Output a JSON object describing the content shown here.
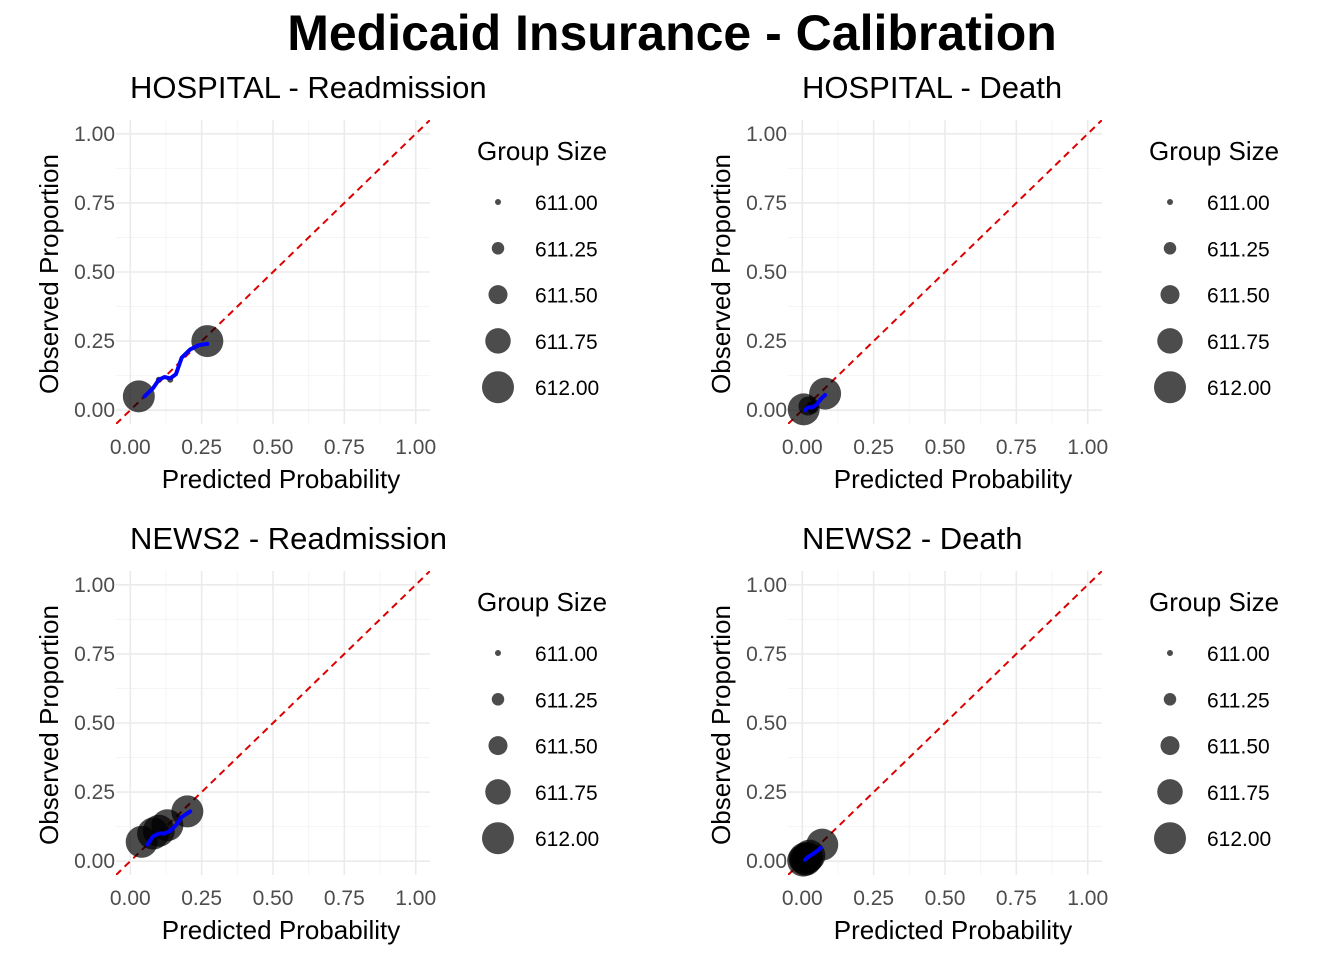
{
  "title": "Medicaid Insurance - Calibration",
  "colors": {
    "point": "#000000",
    "point_opacity": 0.7,
    "smooth": "#0000ff",
    "reference": "#dd0000",
    "grid_major": "#ebebeb",
    "grid_minor": "#f5f5f5"
  },
  "chart_data": [
    {
      "type": "scatter",
      "title": "HOSPITAL - Readmission",
      "xlabel": "Predicted Probability",
      "ylabel": "Observed Proportion",
      "xlim": [
        0,
        1
      ],
      "ylim": [
        0,
        1
      ],
      "xticks": [
        "0.00",
        "0.25",
        "0.50",
        "0.75",
        "1.00"
      ],
      "yticks": [
        "0.00",
        "0.25",
        "0.50",
        "0.75",
        "1.00"
      ],
      "reference_line": "y = x",
      "grid": true,
      "legend": {
        "title": "Group Size",
        "position": "right",
        "labels": [
          "611.00",
          "611.25",
          "611.50",
          "611.75",
          "612.00"
        ],
        "sizes": [
          611.0,
          611.25,
          611.5,
          611.75,
          612.0
        ]
      },
      "points": [
        {
          "x": 0.03,
          "y": 0.05,
          "size": 612
        },
        {
          "x": 0.27,
          "y": 0.25,
          "size": 612
        },
        {
          "x": 0.1,
          "y": 0.11,
          "size": 611
        },
        {
          "x": 0.14,
          "y": 0.11,
          "size": 611
        }
      ],
      "smooth": [
        [
          0.05,
          0.05
        ],
        [
          0.08,
          0.08
        ],
        [
          0.1,
          0.11
        ],
        [
          0.12,
          0.12
        ],
        [
          0.14,
          0.115
        ],
        [
          0.16,
          0.13
        ],
        [
          0.18,
          0.19
        ],
        [
          0.21,
          0.22
        ],
        [
          0.24,
          0.235
        ],
        [
          0.27,
          0.24
        ]
      ]
    },
    {
      "type": "scatter",
      "title": "HOSPITAL - Death",
      "xlabel": "Predicted Probability",
      "ylabel": "Observed Proportion",
      "xlim": [
        0,
        1
      ],
      "ylim": [
        0,
        1
      ],
      "xticks": [
        "0.00",
        "0.25",
        "0.50",
        "0.75",
        "1.00"
      ],
      "yticks": [
        "0.00",
        "0.25",
        "0.50",
        "0.75",
        "1.00"
      ],
      "reference_line": "y = x",
      "grid": true,
      "legend": {
        "title": "Group Size",
        "position": "right",
        "labels": [
          "611.00",
          "611.25",
          "611.50",
          "611.75",
          "612.00"
        ],
        "sizes": [
          611.0,
          611.25,
          611.5,
          611.75,
          612.0
        ]
      },
      "points": [
        {
          "x": 0.005,
          "y": 0.003,
          "size": 612
        },
        {
          "x": 0.08,
          "y": 0.06,
          "size": 612
        },
        {
          "x": 0.02,
          "y": 0.015,
          "size": 611.5
        },
        {
          "x": 0.035,
          "y": 0.01,
          "size": 611.25
        }
      ],
      "smooth": [
        [
          0.01,
          0.0
        ],
        [
          0.02,
          0.01
        ],
        [
          0.035,
          0.01
        ],
        [
          0.05,
          0.02
        ],
        [
          0.065,
          0.04
        ],
        [
          0.08,
          0.055
        ]
      ]
    },
    {
      "type": "scatter",
      "title": "NEWS2 - Readmission",
      "xlabel": "Predicted Probability",
      "ylabel": "Observed Proportion",
      "xlim": [
        0,
        1
      ],
      "ylim": [
        0,
        1
      ],
      "xticks": [
        "0.00",
        "0.25",
        "0.50",
        "0.75",
        "1.00"
      ],
      "yticks": [
        "0.00",
        "0.25",
        "0.50",
        "0.75",
        "1.00"
      ],
      "reference_line": "y = x",
      "grid": true,
      "legend": {
        "title": "Group Size",
        "position": "right",
        "labels": [
          "611.00",
          "611.25",
          "611.50",
          "611.75",
          "612.00"
        ],
        "sizes": [
          611.0,
          611.25,
          611.5,
          611.75,
          612.0
        ]
      },
      "points": [
        {
          "x": 0.04,
          "y": 0.07,
          "size": 612
        },
        {
          "x": 0.08,
          "y": 0.1,
          "size": 612
        },
        {
          "x": 0.1,
          "y": 0.11,
          "size": 612
        },
        {
          "x": 0.13,
          "y": 0.13,
          "size": 612
        },
        {
          "x": 0.2,
          "y": 0.18,
          "size": 612
        }
      ],
      "smooth": [
        [
          0.06,
          0.06
        ],
        [
          0.08,
          0.09
        ],
        [
          0.1,
          0.1
        ],
        [
          0.12,
          0.1
        ],
        [
          0.14,
          0.11
        ],
        [
          0.16,
          0.13
        ],
        [
          0.18,
          0.16
        ],
        [
          0.21,
          0.18
        ]
      ]
    },
    {
      "type": "scatter",
      "title": "NEWS2 - Death",
      "xlabel": "Predicted Probability",
      "ylabel": "Observed Proportion",
      "xlim": [
        0,
        1
      ],
      "ylim": [
        0,
        1
      ],
      "xticks": [
        "0.00",
        "0.25",
        "0.50",
        "0.75",
        "1.00"
      ],
      "yticks": [
        "0.00",
        "0.25",
        "0.50",
        "0.75",
        "1.00"
      ],
      "reference_line": "y = x",
      "grid": true,
      "legend": {
        "title": "Group Size",
        "position": "right",
        "labels": [
          "611.00",
          "611.25",
          "611.50",
          "611.75",
          "612.00"
        ],
        "sizes": [
          611.0,
          611.25,
          611.5,
          611.75,
          612.0
        ]
      },
      "points": [
        {
          "x": 0.003,
          "y": 0.002,
          "size": 612
        },
        {
          "x": 0.008,
          "y": 0.01,
          "size": 612
        },
        {
          "x": 0.012,
          "y": 0.005,
          "size": 612
        },
        {
          "x": 0.018,
          "y": 0.012,
          "size": 612
        },
        {
          "x": 0.025,
          "y": 0.02,
          "size": 612
        },
        {
          "x": 0.07,
          "y": 0.06,
          "size": 612
        }
      ],
      "smooth": [
        [
          0.01,
          0.005
        ],
        [
          0.02,
          0.015
        ],
        [
          0.035,
          0.025
        ],
        [
          0.05,
          0.035
        ],
        [
          0.065,
          0.048
        ]
      ]
    }
  ]
}
